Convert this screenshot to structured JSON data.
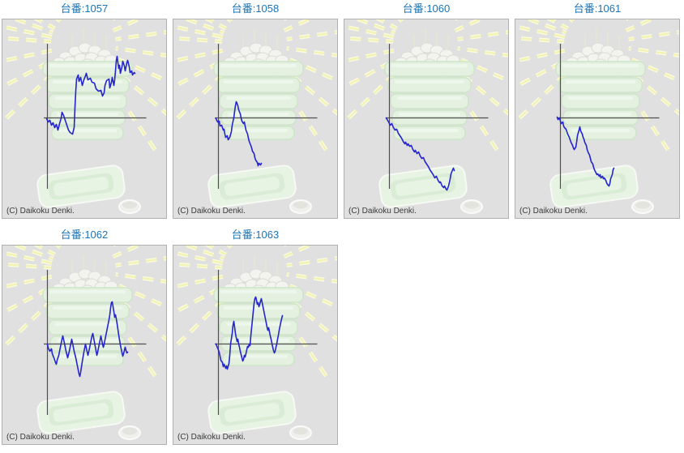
{
  "copyright": "(C) Daikoku Denki.",
  "colors": {
    "title_text": "#1b74b5",
    "line": "#2525cd",
    "axis": "#4f4f4f",
    "panel_bg": "#e0e0e0",
    "panel_border": "#b0b0b0",
    "ray_outer": "#fbfbdf",
    "ray_inner": "#f2f2b6",
    "machine_fill": "#e4f1e0",
    "machine_stroke": "#cde6c8"
  },
  "series_units": "pixels from axis origin, y positive = above axis (no tick labels shown in source)",
  "chart_data": [
    {
      "type": "line",
      "title": "台番:1057",
      "xlabel": "",
      "ylabel": "",
      "legend": [],
      "points": [
        [
          -1,
          -1
        ],
        [
          1,
          -5
        ],
        [
          3,
          -3
        ],
        [
          5,
          -9
        ],
        [
          7,
          -6
        ],
        [
          9,
          -12
        ],
        [
          11,
          -8
        ],
        [
          13,
          -15
        ],
        [
          15,
          -7
        ],
        [
          17,
          0
        ],
        [
          18,
          7
        ],
        [
          20,
          3
        ],
        [
          22,
          -3
        ],
        [
          24,
          -9
        ],
        [
          26,
          -15
        ],
        [
          28,
          -18
        ],
        [
          31,
          -20
        ],
        [
          33,
          -12
        ],
        [
          34,
          13
        ],
        [
          35,
          33
        ],
        [
          36,
          48
        ],
        [
          38,
          53
        ],
        [
          39,
          45
        ],
        [
          41,
          50
        ],
        [
          43,
          40
        ],
        [
          45,
          47
        ],
        [
          47,
          52
        ],
        [
          48,
          55
        ],
        [
          50,
          47
        ],
        [
          53,
          49
        ],
        [
          55,
          44
        ],
        [
          58,
          43
        ],
        [
          60,
          36
        ],
        [
          63,
          33
        ],
        [
          66,
          34
        ],
        [
          68,
          27
        ],
        [
          70,
          31
        ],
        [
          71,
          40
        ],
        [
          73,
          46
        ],
        [
          76,
          48
        ],
        [
          77,
          37
        ],
        [
          79,
          44
        ],
        [
          80,
          50
        ],
        [
          82,
          40
        ],
        [
          83,
          47
        ],
        [
          84,
          58
        ],
        [
          85,
          71
        ],
        [
          86,
          76
        ],
        [
          87,
          68
        ],
        [
          88,
          61
        ],
        [
          89,
          65
        ],
        [
          90,
          55
        ],
        [
          92,
          63
        ],
        [
          93,
          70
        ],
        [
          95,
          64
        ],
        [
          96,
          58
        ],
        [
          98,
          68
        ],
        [
          99,
          71
        ],
        [
          101,
          63
        ],
        [
          102,
          56
        ],
        [
          104,
          58
        ],
        [
          105,
          53
        ],
        [
          107,
          56
        ],
        [
          108,
          55
        ]
      ]
    },
    {
      "type": "line",
      "title": "台番:1058",
      "xlabel": "",
      "ylabel": "",
      "legend": [],
      "points": [
        [
          -3,
          -1
        ],
        [
          -1,
          -5
        ],
        [
          1,
          -4
        ],
        [
          2,
          -10
        ],
        [
          4,
          -9
        ],
        [
          6,
          -15
        ],
        [
          7,
          -14
        ],
        [
          8,
          -20
        ],
        [
          9,
          -24
        ],
        [
          11,
          -22
        ],
        [
          12,
          -27
        ],
        [
          14,
          -24
        ],
        [
          16,
          -17
        ],
        [
          17,
          -9
        ],
        [
          19,
          0
        ],
        [
          20,
          8
        ],
        [
          21,
          15
        ],
        [
          22,
          20
        ],
        [
          23,
          18
        ],
        [
          24,
          15
        ],
        [
          25,
          10
        ],
        [
          27,
          5
        ],
        [
          28,
          0
        ],
        [
          29,
          -4
        ],
        [
          31,
          -7
        ],
        [
          32,
          -5
        ],
        [
          33,
          -10
        ],
        [
          34,
          -15
        ],
        [
          36,
          -20
        ],
        [
          37,
          -25
        ],
        [
          38,
          -29
        ],
        [
          40,
          -34
        ],
        [
          41,
          -37
        ],
        [
          42,
          -41
        ],
        [
          44,
          -44
        ],
        [
          45,
          -49
        ],
        [
          46,
          -52
        ],
        [
          48,
          -55
        ],
        [
          49,
          -59
        ],
        [
          50,
          -56
        ],
        [
          52,
          -58
        ],
        [
          53,
          -56
        ]
      ]
    },
    {
      "type": "line",
      "title": "台番:1060",
      "xlabel": "",
      "ylabel": "",
      "legend": [],
      "points": [
        [
          -4,
          0
        ],
        [
          -1,
          -5
        ],
        [
          1,
          -9
        ],
        [
          3,
          -7
        ],
        [
          5,
          -12
        ],
        [
          7,
          -15
        ],
        [
          9,
          -14
        ],
        [
          11,
          -19
        ],
        [
          13,
          -22
        ],
        [
          15,
          -25
        ],
        [
          17,
          -29
        ],
        [
          19,
          -32
        ],
        [
          20,
          -30
        ],
        [
          22,
          -34
        ],
        [
          23,
          -32
        ],
        [
          25,
          -35
        ],
        [
          27,
          -34
        ],
        [
          29,
          -39
        ],
        [
          31,
          -42
        ],
        [
          32,
          -40
        ],
        [
          34,
          -44
        ],
        [
          36,
          -42
        ],
        [
          38,
          -47
        ],
        [
          40,
          -50
        ],
        [
          42,
          -49
        ],
        [
          44,
          -54
        ],
        [
          46,
          -57
        ],
        [
          48,
          -60
        ],
        [
          50,
          -64
        ],
        [
          52,
          -67
        ],
        [
          54,
          -70
        ],
        [
          56,
          -74
        ],
        [
          58,
          -72
        ],
        [
          60,
          -77
        ],
        [
          62,
          -80
        ],
        [
          63,
          -79
        ],
        [
          65,
          -84
        ],
        [
          67,
          -86
        ],
        [
          68,
          -84
        ],
        [
          70,
          -88
        ],
        [
          71,
          -89
        ],
        [
          73,
          -84
        ],
        [
          75,
          -75
        ],
        [
          76,
          -69
        ],
        [
          78,
          -64
        ],
        [
          79,
          -62
        ],
        [
          80,
          -65
        ]
      ]
    },
    {
      "type": "line",
      "title": "台番:1061",
      "xlabel": "",
      "ylabel": "",
      "legend": [],
      "points": [
        [
          -4,
          1
        ],
        [
          -3,
          -2
        ],
        [
          -1,
          0
        ],
        [
          0,
          -4
        ],
        [
          1,
          -7
        ],
        [
          3,
          -5
        ],
        [
          4,
          -10
        ],
        [
          5,
          -12
        ],
        [
          7,
          -14
        ],
        [
          8,
          -17
        ],
        [
          9,
          -20
        ],
        [
          11,
          -24
        ],
        [
          12,
          -27
        ],
        [
          13,
          -30
        ],
        [
          15,
          -34
        ],
        [
          16,
          -37
        ],
        [
          17,
          -39
        ],
        [
          19,
          -36
        ],
        [
          20,
          -30
        ],
        [
          21,
          -22
        ],
        [
          23,
          -15
        ],
        [
          24,
          -11
        ],
        [
          25,
          -16
        ],
        [
          27,
          -20
        ],
        [
          28,
          -24
        ],
        [
          29,
          -26
        ],
        [
          30,
          -30
        ],
        [
          32,
          -34
        ],
        [
          33,
          -39
        ],
        [
          34,
          -42
        ],
        [
          36,
          -46
        ],
        [
          37,
          -50
        ],
        [
          38,
          -54
        ],
        [
          40,
          -57
        ],
        [
          41,
          -61
        ],
        [
          42,
          -64
        ],
        [
          44,
          -68
        ],
        [
          45,
          -70
        ],
        [
          46,
          -69
        ],
        [
          48,
          -72
        ],
        [
          49,
          -70
        ],
        [
          50,
          -74
        ],
        [
          52,
          -72
        ],
        [
          53,
          -75
        ],
        [
          54,
          -74
        ],
        [
          56,
          -77
        ],
        [
          57,
          -80
        ],
        [
          58,
          -82
        ],
        [
          60,
          -84
        ],
        [
          61,
          -81
        ],
        [
          62,
          -75
        ],
        [
          64,
          -70
        ],
        [
          65,
          -64
        ],
        [
          66,
          -62
        ]
      ]
    },
    {
      "type": "line",
      "title": "台番:1062",
      "xlabel": "",
      "ylabel": "",
      "legend": [],
      "points": [
        [
          0,
          0
        ],
        [
          1,
          -5
        ],
        [
          3,
          -9
        ],
        [
          5,
          -6
        ],
        [
          6,
          -12
        ],
        [
          8,
          -17
        ],
        [
          10,
          -23
        ],
        [
          11,
          -25
        ],
        [
          12,
          -20
        ],
        [
          14,
          -14
        ],
        [
          16,
          -4
        ],
        [
          17,
          1
        ],
        [
          18,
          6
        ],
        [
          19,
          10
        ],
        [
          21,
          1
        ],
        [
          22,
          -4
        ],
        [
          23,
          -9
        ],
        [
          25,
          -17
        ],
        [
          27,
          -9
        ],
        [
          29,
          1
        ],
        [
          30,
          6
        ],
        [
          31,
          1
        ],
        [
          33,
          -9
        ],
        [
          35,
          -17
        ],
        [
          37,
          -27
        ],
        [
          39,
          -37
        ],
        [
          40,
          -40
        ],
        [
          41,
          -35
        ],
        [
          43,
          -22
        ],
        [
          45,
          -10
        ],
        [
          47,
          0
        ],
        [
          48,
          -5
        ],
        [
          50,
          -14
        ],
        [
          52,
          -5
        ],
        [
          54,
          5
        ],
        [
          55,
          10
        ],
        [
          56,
          13
        ],
        [
          57,
          8
        ],
        [
          59,
          -3
        ],
        [
          61,
          -14
        ],
        [
          62,
          -10
        ],
        [
          64,
          0
        ],
        [
          66,
          10
        ],
        [
          67,
          5
        ],
        [
          68,
          0
        ],
        [
          69,
          -4
        ],
        [
          70,
          0
        ],
        [
          72,
          10
        ],
        [
          74,
          20
        ],
        [
          76,
          30
        ],
        [
          77,
          36
        ],
        [
          78,
          45
        ],
        [
          79,
          51
        ],
        [
          80,
          52
        ],
        [
          81,
          46
        ],
        [
          82,
          40
        ],
        [
          83,
          33
        ],
        [
          84,
          36
        ],
        [
          85,
          31
        ],
        [
          86,
          25
        ],
        [
          87,
          18
        ],
        [
          88,
          11
        ],
        [
          89,
          5
        ],
        [
          90,
          -1
        ],
        [
          91,
          -6
        ],
        [
          93,
          -15
        ],
        [
          94,
          -12
        ],
        [
          96,
          -4
        ],
        [
          97,
          -8
        ],
        [
          98,
          -11
        ],
        [
          99,
          -10
        ]
      ]
    },
    {
      "type": "line",
      "title": "台番:1063",
      "xlabel": "",
      "ylabel": "",
      "legend": [],
      "points": [
        [
          -3,
          0
        ],
        [
          -1,
          -5
        ],
        [
          1,
          -10
        ],
        [
          2,
          -15
        ],
        [
          3,
          -20
        ],
        [
          5,
          -23
        ],
        [
          6,
          -28
        ],
        [
          7,
          -25
        ],
        [
          9,
          -30
        ],
        [
          10,
          -27
        ],
        [
          11,
          -31
        ],
        [
          13,
          -24
        ],
        [
          14,
          -14
        ],
        [
          15,
          0
        ],
        [
          17,
          13
        ],
        [
          18,
          23
        ],
        [
          19,
          28
        ],
        [
          20,
          21
        ],
        [
          21,
          13
        ],
        [
          22,
          8
        ],
        [
          23,
          3
        ],
        [
          24,
          6
        ],
        [
          25,
          0
        ],
        [
          26,
          -4
        ],
        [
          27,
          -9
        ],
        [
          28,
          -13
        ],
        [
          29,
          -17
        ],
        [
          30,
          -21
        ],
        [
          31,
          -19
        ],
        [
          32,
          -14
        ],
        [
          33,
          -16
        ],
        [
          34,
          -12
        ],
        [
          35,
          -7
        ],
        [
          36,
          -3
        ],
        [
          37,
          -4
        ],
        [
          38,
          0
        ],
        [
          39,
          -2
        ],
        [
          40,
          10
        ],
        [
          41,
          20
        ],
        [
          42,
          30
        ],
        [
          43,
          40
        ],
        [
          44,
          50
        ],
        [
          45,
          56
        ],
        [
          46,
          58
        ],
        [
          47,
          54
        ],
        [
          48,
          49
        ],
        [
          49,
          51
        ],
        [
          50,
          46
        ],
        [
          51,
          49
        ],
        [
          52,
          53
        ],
        [
          53,
          56
        ],
        [
          54,
          51
        ],
        [
          55,
          46
        ],
        [
          56,
          41
        ],
        [
          57,
          36
        ],
        [
          58,
          31
        ],
        [
          59,
          26
        ],
        [
          60,
          21
        ],
        [
          61,
          17
        ],
        [
          62,
          20
        ],
        [
          63,
          15
        ],
        [
          64,
          10
        ],
        [
          65,
          6
        ],
        [
          66,
          1
        ],
        [
          67,
          -4
        ],
        [
          68,
          -8
        ],
        [
          69,
          -11
        ],
        [
          70,
          -9
        ],
        [
          71,
          -4
        ],
        [
          72,
          0
        ],
        [
          73,
          6
        ],
        [
          74,
          11
        ],
        [
          75,
          17
        ],
        [
          76,
          22
        ],
        [
          77,
          27
        ],
        [
          78,
          31
        ],
        [
          79,
          35
        ]
      ]
    }
  ]
}
